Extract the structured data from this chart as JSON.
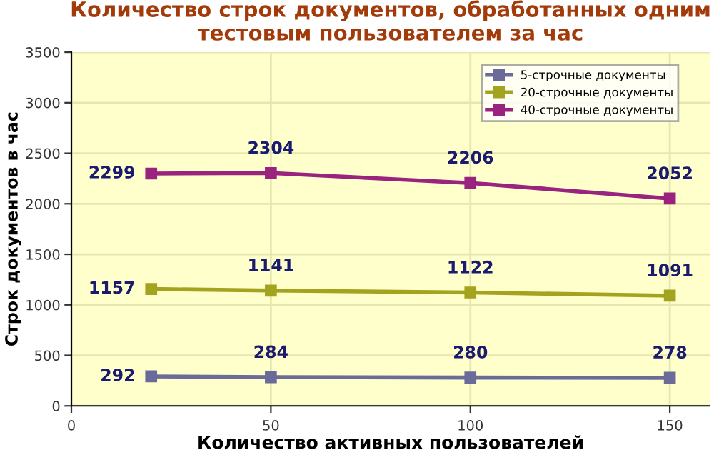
{
  "chart_data": {
    "type": "line",
    "title": "Количество строк документов, обработанных одним\nтестовым пользователем за час",
    "xlabel": "Количество активных пользователей",
    "ylabel": "Строк документов в час",
    "x": [
      20,
      50,
      100,
      150
    ],
    "series": [
      {
        "name": "5-строчные документы",
        "color": "#6b6b99",
        "values": [
          292,
          284,
          280,
          278
        ]
      },
      {
        "name": "20-строчные документы",
        "color": "#a3a31f",
        "values": [
          1157,
          1141,
          1122,
          1091
        ]
      },
      {
        "name": "40-строчные документы",
        "color": "#99237f",
        "values": [
          2299,
          2304,
          2206,
          2052
        ]
      }
    ],
    "xlim": [
      0,
      160
    ],
    "xticks": [
      0,
      50,
      100,
      150
    ],
    "ylim": [
      0,
      3500
    ],
    "yticks": [
      0,
      500,
      1000,
      1500,
      2000,
      2500,
      3000,
      3500
    ],
    "grid": true,
    "legend": "top right",
    "marker": "square",
    "line_style": "solid",
    "data_labels": true
  }
}
